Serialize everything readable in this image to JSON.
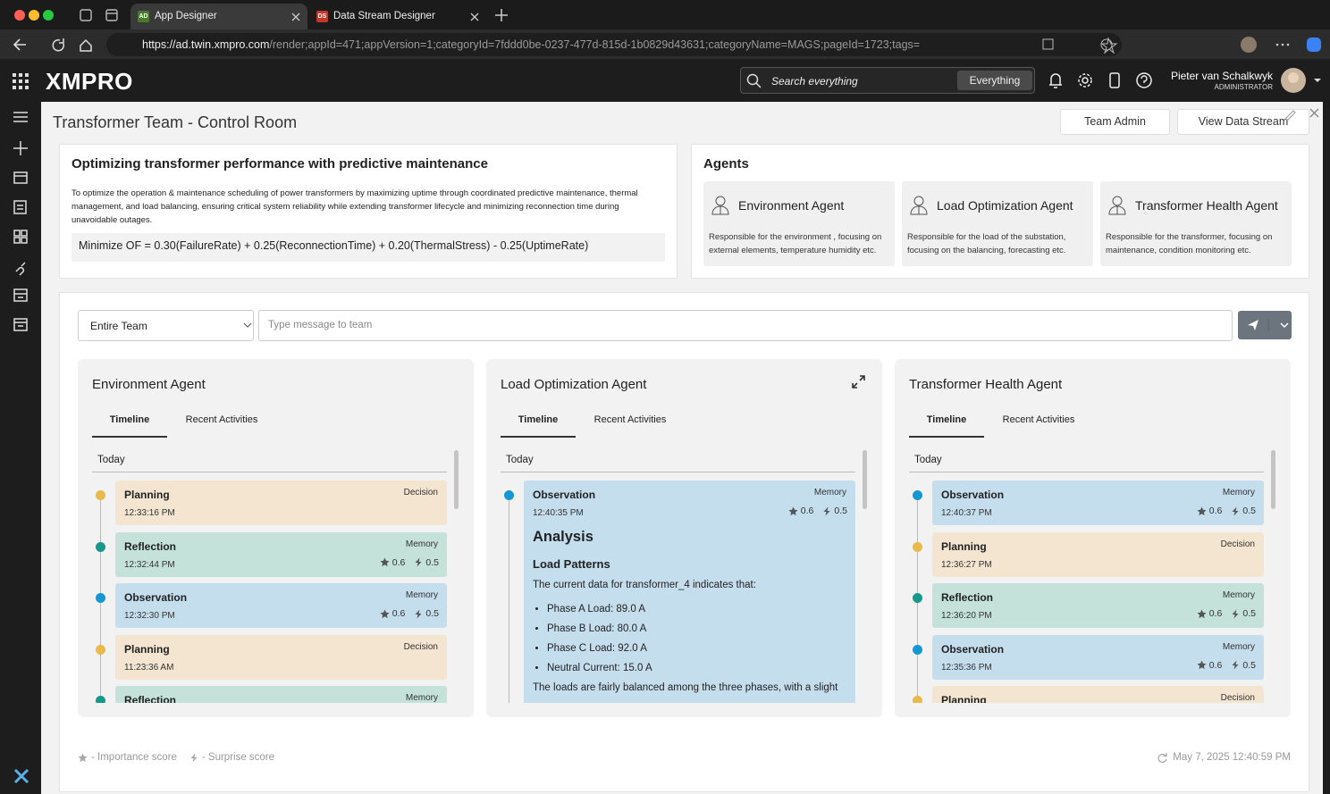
{
  "browser": {
    "tabs": [
      {
        "icon": "AD",
        "title": "App Designer"
      },
      {
        "icon": "DS",
        "title": "Data Stream Designer"
      }
    ],
    "url": {
      "host": "https://ad.twin.xmpro.com",
      "path": "/render;appId=471;appVersion=1;categoryId=7fddd0be-0237-477d-815d-1b0829d43631;categoryName=MAGS;pageId=1723;tags="
    }
  },
  "header": {
    "logo": "XMPRO",
    "search_placeholder": "Search everything",
    "search_scope": "Everything",
    "user_name": "Pieter van Schalkwyk",
    "user_role": "ADMINISTRATOR"
  },
  "page": {
    "title": "Transformer Team - Control Room",
    "buttons": [
      "Team Admin",
      "View Data Stream"
    ]
  },
  "objective": {
    "title": "Optimizing transformer performance with predictive maintenance",
    "description": "To optimize the operation & maintenance scheduling of power transformers by maximizing uptime through coordinated predictive maintenance, thermal management, and load balancing, ensuring critical system reliability while extending transformer lifecycle and minimizing reconnection time during unavoidable outages.",
    "formula": "Minimize OF = 0.30(FailureRate) + 0.25(ReconnectionTime) + 0.20(ThermalStress) - 0.25(UptimeRate)"
  },
  "agents": {
    "title": "Agents",
    "cards": [
      {
        "name": "Environment Agent",
        "description": "Responsible for the environment , focusing on external elements, temperature humidity etc."
      },
      {
        "name": "Load Optimization Agent",
        "description": "Responsible for the load of the substation, focusing on the balancing, forecasting etc."
      },
      {
        "name": "Transformer Health Agent",
        "description": "Responsible for the transformer, focusing on maintenance, condition monitoring etc."
      }
    ]
  },
  "messaging": {
    "recipient": "Entire Team",
    "placeholder": "Type message to team"
  },
  "panels": [
    {
      "title": "Environment Agent",
      "tabs": [
        "Timeline",
        "Recent Activities"
      ],
      "day": "Today",
      "entries": [
        {
          "title": "Planning",
          "type": "Decision",
          "time": "12:33:16 PM",
          "color": "#f3e5cf",
          "dot_color": "#e9b949"
        },
        {
          "title": "Reflection",
          "type": "Memory",
          "time": "12:32:44 PM",
          "importance": 0.6,
          "surprise": 0.5,
          "color": "#c4e2da",
          "dot_color": "#16998a"
        },
        {
          "title": "Observation",
          "type": "Memory",
          "time": "12:32:30 PM",
          "importance": 0.6,
          "surprise": 0.5,
          "color": "#c5deee",
          "dot_color": "#1597d3"
        },
        {
          "title": "Planning",
          "type": "Decision",
          "time": "11:23:36 AM",
          "color": "#f3e5cf",
          "dot_color": "#e9b949"
        },
        {
          "title": "Reflection",
          "type": "Memory",
          "color": "#c4e2da",
          "dot_color": "#16998a"
        }
      ]
    },
    {
      "title": "Load Optimization Agent",
      "tabs": [
        "Timeline",
        "Recent Activities"
      ],
      "day": "Today",
      "entries": [
        {
          "title": "Observation",
          "type": "Memory",
          "time": "12:40:35 PM",
          "importance": 0.6,
          "surprise": 0.5,
          "color": "#c5deee",
          "dot_color": "#1597d3",
          "detail": {
            "heading": "Analysis",
            "subheading": "Load Patterns",
            "intro": "The current data for transformer_4 indicates that:",
            "bullets": [
              "Phase A Load: 89.0 A",
              "Phase B Load: 80.0 A",
              "Phase C Load: 92.0 A",
              "Neutral Current: 15.0 A"
            ],
            "closing": "The loads are fairly balanced among the three phases, with a slight"
          }
        }
      ]
    },
    {
      "title": "Transformer Health Agent",
      "tabs": [
        "Timeline",
        "Recent Activities"
      ],
      "day": "Today",
      "entries": [
        {
          "title": "Observation",
          "type": "Memory",
          "time": "12:40:37 PM",
          "importance": 0.6,
          "surprise": 0.5,
          "color": "#c5deee",
          "dot_color": "#1597d3"
        },
        {
          "title": "Planning",
          "type": "Decision",
          "time": "12:36:27 PM",
          "color": "#f3e5cf",
          "dot_color": "#e9b949"
        },
        {
          "title": "Reflection",
          "type": "Memory",
          "time": "12:36:20 PM",
          "importance": 0.6,
          "surprise": 0.5,
          "color": "#c4e2da",
          "dot_color": "#16998a"
        },
        {
          "title": "Observation",
          "type": "Memory",
          "time": "12:35:36 PM",
          "importance": 0.6,
          "surprise": 0.5,
          "color": "#c5deee",
          "dot_color": "#1597d3"
        },
        {
          "title": "Planning",
          "type": "Decision",
          "color": "#f3e5cf",
          "dot_color": "#e9b949"
        }
      ]
    }
  ],
  "footer": {
    "importance_legend": "- Importance score",
    "surprise_legend": "- Surprise score",
    "updated": "May 7, 2025 12:40:59 PM"
  }
}
